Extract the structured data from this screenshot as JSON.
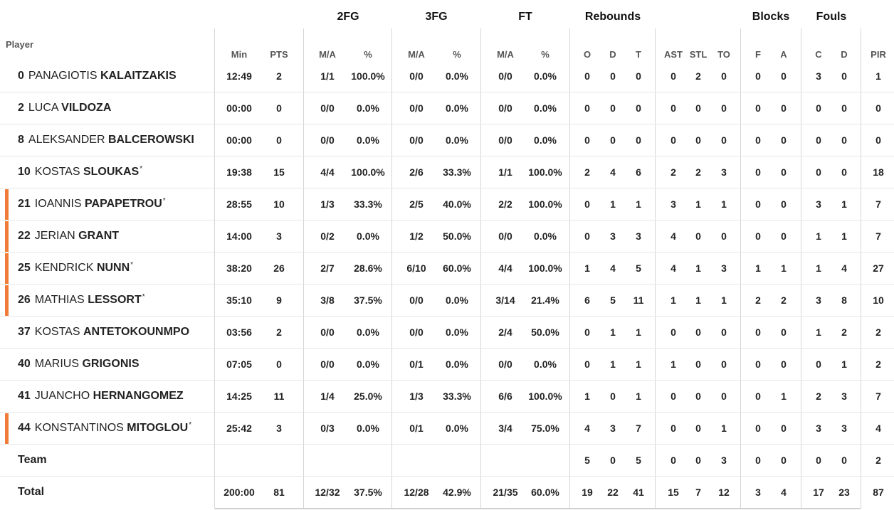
{
  "groups": [
    "2FG",
    "3FG",
    "FT",
    "Rebounds",
    "Blocks",
    "Fouls"
  ],
  "columns": {
    "player": "Player",
    "min": "Min",
    "pts": "PTS",
    "fg2_ma": "M/A",
    "fg2_pct": "%",
    "fg3_ma": "M/A",
    "fg3_pct": "%",
    "ft_ma": "M/A",
    "ft_pct": "%",
    "reb_o": "O",
    "reb_d": "D",
    "reb_t": "T",
    "ast": "AST",
    "stl": "STL",
    "to": "TO",
    "blk_f": "F",
    "blk_a": "A",
    "foul_c": "C",
    "foul_d": "D",
    "pir": "PIR"
  },
  "marker_color": "#f07c3a",
  "players": [
    {
      "num": "0",
      "first": "PANAGIOTIS",
      "last": "KALAITZAKIS",
      "starter": false,
      "marked": false,
      "min": "12:49",
      "pts": "2",
      "fg2_ma": "1/1",
      "fg2_pct": "100.0%",
      "fg3_ma": "0/0",
      "fg3_pct": "0.0%",
      "ft_ma": "0/0",
      "ft_pct": "0.0%",
      "reb_o": "0",
      "reb_d": "0",
      "reb_t": "0",
      "ast": "0",
      "stl": "2",
      "to": "0",
      "blk_f": "0",
      "blk_a": "0",
      "foul_c": "3",
      "foul_d": "0",
      "pir": "1"
    },
    {
      "num": "2",
      "first": "LUCA",
      "last": "VILDOZA",
      "starter": false,
      "marked": false,
      "min": "00:00",
      "pts": "0",
      "fg2_ma": "0/0",
      "fg2_pct": "0.0%",
      "fg3_ma": "0/0",
      "fg3_pct": "0.0%",
      "ft_ma": "0/0",
      "ft_pct": "0.0%",
      "reb_o": "0",
      "reb_d": "0",
      "reb_t": "0",
      "ast": "0",
      "stl": "0",
      "to": "0",
      "blk_f": "0",
      "blk_a": "0",
      "foul_c": "0",
      "foul_d": "0",
      "pir": "0"
    },
    {
      "num": "8",
      "first": "ALEKSANDER",
      "last": "BALCEROWSKI",
      "starter": false,
      "marked": false,
      "min": "00:00",
      "pts": "0",
      "fg2_ma": "0/0",
      "fg2_pct": "0.0%",
      "fg3_ma": "0/0",
      "fg3_pct": "0.0%",
      "ft_ma": "0/0",
      "ft_pct": "0.0%",
      "reb_o": "0",
      "reb_d": "0",
      "reb_t": "0",
      "ast": "0",
      "stl": "0",
      "to": "0",
      "blk_f": "0",
      "blk_a": "0",
      "foul_c": "0",
      "foul_d": "0",
      "pir": "0"
    },
    {
      "num": "10",
      "first": "KOSTAS",
      "last": "SLOUKAS",
      "starter": true,
      "marked": false,
      "min": "19:38",
      "pts": "15",
      "fg2_ma": "4/4",
      "fg2_pct": "100.0%",
      "fg3_ma": "2/6",
      "fg3_pct": "33.3%",
      "ft_ma": "1/1",
      "ft_pct": "100.0%",
      "reb_o": "2",
      "reb_d": "4",
      "reb_t": "6",
      "ast": "2",
      "stl": "2",
      "to": "3",
      "blk_f": "0",
      "blk_a": "0",
      "foul_c": "0",
      "foul_d": "0",
      "pir": "18"
    },
    {
      "num": "21",
      "first": "IOANNIS",
      "last": "PAPAPETROU",
      "starter": true,
      "marked": true,
      "min": "28:55",
      "pts": "10",
      "fg2_ma": "1/3",
      "fg2_pct": "33.3%",
      "fg3_ma": "2/5",
      "fg3_pct": "40.0%",
      "ft_ma": "2/2",
      "ft_pct": "100.0%",
      "reb_o": "0",
      "reb_d": "1",
      "reb_t": "1",
      "ast": "3",
      "stl": "1",
      "to": "1",
      "blk_f": "0",
      "blk_a": "0",
      "foul_c": "3",
      "foul_d": "1",
      "pir": "7"
    },
    {
      "num": "22",
      "first": "JERIAN",
      "last": "GRANT",
      "starter": false,
      "marked": true,
      "min": "14:00",
      "pts": "3",
      "fg2_ma": "0/2",
      "fg2_pct": "0.0%",
      "fg3_ma": "1/2",
      "fg3_pct": "50.0%",
      "ft_ma": "0/0",
      "ft_pct": "0.0%",
      "reb_o": "0",
      "reb_d": "3",
      "reb_t": "3",
      "ast": "4",
      "stl": "0",
      "to": "0",
      "blk_f": "0",
      "blk_a": "0",
      "foul_c": "1",
      "foul_d": "1",
      "pir": "7"
    },
    {
      "num": "25",
      "first": "KENDRICK",
      "last": "NUNN",
      "starter": true,
      "marked": true,
      "min": "38:20",
      "pts": "26",
      "fg2_ma": "2/7",
      "fg2_pct": "28.6%",
      "fg3_ma": "6/10",
      "fg3_pct": "60.0%",
      "ft_ma": "4/4",
      "ft_pct": "100.0%",
      "reb_o": "1",
      "reb_d": "4",
      "reb_t": "5",
      "ast": "4",
      "stl": "1",
      "to": "3",
      "blk_f": "1",
      "blk_a": "1",
      "foul_c": "1",
      "foul_d": "4",
      "pir": "27"
    },
    {
      "num": "26",
      "first": "MATHIAS",
      "last": "LESSORT",
      "starter": true,
      "marked": true,
      "min": "35:10",
      "pts": "9",
      "fg2_ma": "3/8",
      "fg2_pct": "37.5%",
      "fg3_ma": "0/0",
      "fg3_pct": "0.0%",
      "ft_ma": "3/14",
      "ft_pct": "21.4%",
      "reb_o": "6",
      "reb_d": "5",
      "reb_t": "11",
      "ast": "1",
      "stl": "1",
      "to": "1",
      "blk_f": "2",
      "blk_a": "2",
      "foul_c": "3",
      "foul_d": "8",
      "pir": "10"
    },
    {
      "num": "37",
      "first": "KOSTAS",
      "last": "ANTETOKOUNMPO",
      "starter": false,
      "marked": false,
      "min": "03:56",
      "pts": "2",
      "fg2_ma": "0/0",
      "fg2_pct": "0.0%",
      "fg3_ma": "0/0",
      "fg3_pct": "0.0%",
      "ft_ma": "2/4",
      "ft_pct": "50.0%",
      "reb_o": "0",
      "reb_d": "1",
      "reb_t": "1",
      "ast": "0",
      "stl": "0",
      "to": "0",
      "blk_f": "0",
      "blk_a": "0",
      "foul_c": "1",
      "foul_d": "2",
      "pir": "2"
    },
    {
      "num": "40",
      "first": "MARIUS",
      "last": "GRIGONIS",
      "starter": false,
      "marked": false,
      "min": "07:05",
      "pts": "0",
      "fg2_ma": "0/0",
      "fg2_pct": "0.0%",
      "fg3_ma": "0/1",
      "fg3_pct": "0.0%",
      "ft_ma": "0/0",
      "ft_pct": "0.0%",
      "reb_o": "0",
      "reb_d": "1",
      "reb_t": "1",
      "ast": "1",
      "stl": "0",
      "to": "0",
      "blk_f": "0",
      "blk_a": "0",
      "foul_c": "0",
      "foul_d": "1",
      "pir": "2"
    },
    {
      "num": "41",
      "first": "JUANCHO",
      "last": "HERNANGOMEZ",
      "starter": false,
      "marked": false,
      "min": "14:25",
      "pts": "11",
      "fg2_ma": "1/4",
      "fg2_pct": "25.0%",
      "fg3_ma": "1/3",
      "fg3_pct": "33.3%",
      "ft_ma": "6/6",
      "ft_pct": "100.0%",
      "reb_o": "1",
      "reb_d": "0",
      "reb_t": "1",
      "ast": "0",
      "stl": "0",
      "to": "0",
      "blk_f": "0",
      "blk_a": "1",
      "foul_c": "2",
      "foul_d": "3",
      "pir": "7"
    },
    {
      "num": "44",
      "first": "KONSTANTINOS",
      "last": "MITOGLOU",
      "starter": true,
      "marked": true,
      "min": "25:42",
      "pts": "3",
      "fg2_ma": "0/3",
      "fg2_pct": "0.0%",
      "fg3_ma": "0/1",
      "fg3_pct": "0.0%",
      "ft_ma": "3/4",
      "ft_pct": "75.0%",
      "reb_o": "4",
      "reb_d": "3",
      "reb_t": "7",
      "ast": "0",
      "stl": "0",
      "to": "1",
      "blk_f": "0",
      "blk_a": "0",
      "foul_c": "3",
      "foul_d": "3",
      "pir": "4"
    }
  ],
  "team": {
    "label": "Team",
    "reb_o": "5",
    "reb_d": "0",
    "reb_t": "5",
    "ast": "0",
    "stl": "0",
    "to": "3",
    "blk_f": "0",
    "blk_a": "0",
    "foul_c": "0",
    "foul_d": "0",
    "pir": "2"
  },
  "total": {
    "label": "Total",
    "min": "200:00",
    "pts": "81",
    "fg2_ma": "12/32",
    "fg2_pct": "37.5%",
    "fg3_ma": "12/28",
    "fg3_pct": "42.9%",
    "ft_ma": "21/35",
    "ft_pct": "60.0%",
    "reb_o": "19",
    "reb_d": "22",
    "reb_t": "41",
    "ast": "15",
    "stl": "7",
    "to": "12",
    "blk_f": "3",
    "blk_a": "4",
    "foul_c": "17",
    "foul_d": "23",
    "pir": "87"
  }
}
